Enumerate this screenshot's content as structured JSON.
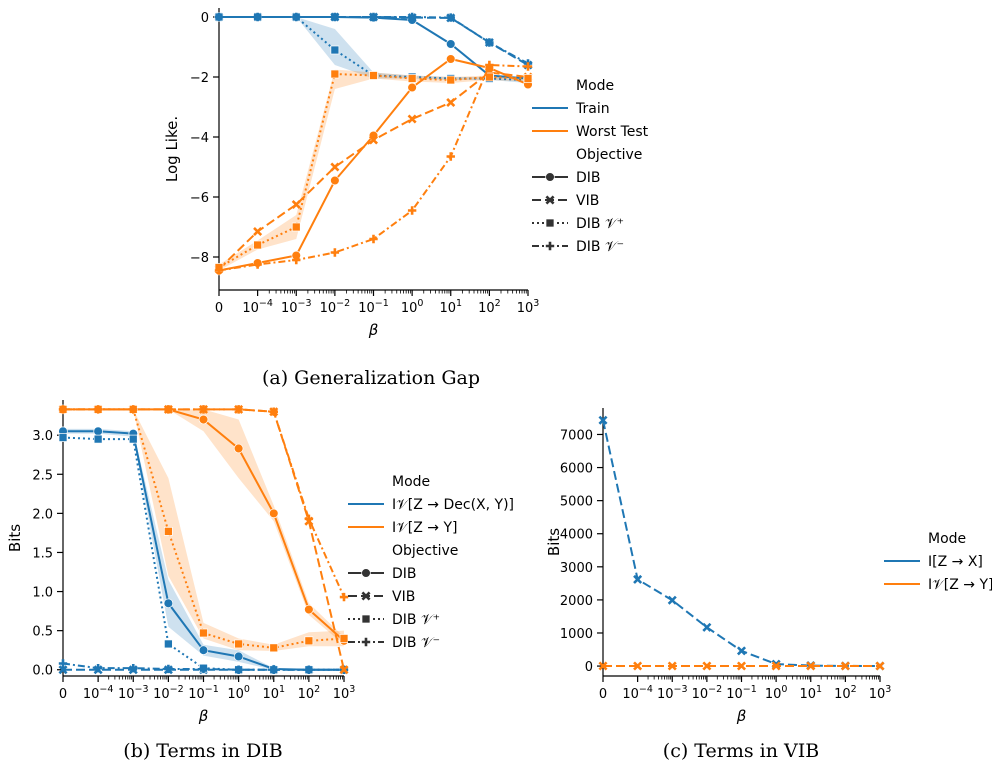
{
  "colors": {
    "train": "#1f77b4",
    "test": "#ff7f0e"
  },
  "x_ticks": [
    "0",
    "10−4",
    "10−3",
    "10−2",
    "10−1",
    "100",
    "101",
    "102",
    "103"
  ],
  "chart_data": [
    {
      "id": "a",
      "type": "line",
      "caption": "(a) Generalization Gap",
      "xlabel": "β",
      "ylabel": "Log Like.",
      "ylim": [
        -9.1,
        0.3
      ],
      "yticks": [
        0,
        -2,
        -4,
        -6,
        -8
      ],
      "legend": {
        "placement": "right",
        "mode_title": "Mode",
        "modes": [
          "Train",
          "Worst Test"
        ],
        "objective_title": "Objective",
        "objectives": [
          "DIB",
          "VIB",
          "DIB 𝒱⁺",
          "DIB 𝒱⁻"
        ]
      },
      "x": [
        0,
        1,
        2,
        3,
        4,
        5,
        6,
        7,
        8
      ],
      "series": [
        {
          "mode": "Train",
          "objective": "DIB",
          "values": [
            0,
            0,
            0,
            0,
            -0.02,
            -0.1,
            -0.9,
            -1.95,
            -2.05
          ]
        },
        {
          "mode": "Train",
          "objective": "VIB",
          "values": [
            0,
            0,
            0,
            0,
            0,
            -0.02,
            -0.03,
            -0.85,
            -1.6
          ]
        },
        {
          "mode": "Train",
          "objective": "DIB 𝒱⁺",
          "values": [
            0,
            0,
            0,
            -1.1,
            -1.95,
            -2.0,
            -2.05,
            -2.05,
            -2.1
          ],
          "band": [
            [
              0,
              0
            ],
            [
              0,
              0
            ],
            [
              0,
              0
            ],
            [
              -0.4,
              -1.6
            ],
            [
              -1.85,
              -2.05
            ],
            [
              -1.95,
              -2.05
            ],
            [
              -2.0,
              -2.1
            ],
            [
              -2.0,
              -2.1
            ],
            [
              -2.0,
              -2.2
            ]
          ]
        },
        {
          "mode": "Train",
          "objective": "DIB 𝒱⁻",
          "values": [
            0,
            0,
            0,
            0,
            0,
            0,
            -0.02,
            -0.85,
            -1.55
          ]
        },
        {
          "mode": "Worst Test",
          "objective": "DIB",
          "values": [
            -8.45,
            -8.2,
            -7.95,
            -5.45,
            -3.95,
            -2.35,
            -1.4,
            -1.7,
            -2.25
          ]
        },
        {
          "mode": "Worst Test",
          "objective": "VIB",
          "values": [
            -8.4,
            -7.15,
            -6.25,
            -5.0,
            -4.1,
            -3.4,
            -2.85,
            -1.85,
            -2.0
          ]
        },
        {
          "mode": "Worst Test",
          "objective": "DIB 𝒱⁺",
          "values": [
            -8.35,
            -7.6,
            -7.0,
            -1.9,
            -1.95,
            -2.05,
            -2.1,
            -2.0,
            -2.05
          ],
          "band": [
            [
              -8.25,
              -8.45
            ],
            [
              -7.45,
              -7.75
            ],
            [
              -6.6,
              -7.4
            ],
            [
              -1.75,
              -2.4
            ],
            [
              -1.85,
              -2.05
            ],
            [
              -1.95,
              -2.15
            ],
            [
              -2.0,
              -2.2
            ],
            [
              -1.95,
              -2.1
            ],
            [
              -2.0,
              -2.15
            ]
          ]
        },
        {
          "mode": "Worst Test",
          "objective": "DIB 𝒱⁻",
          "values": [
            -8.45,
            -8.25,
            -8.1,
            -7.85,
            -7.4,
            -6.45,
            -4.65,
            -1.6,
            -1.65
          ]
        }
      ]
    },
    {
      "id": "b",
      "type": "line",
      "caption": "(b) Terms in DIB",
      "xlabel": "β",
      "ylabel": "Bits",
      "ylim": [
        -0.08,
        3.45
      ],
      "yticks": [
        0.0,
        0.5,
        1.0,
        1.5,
        2.0,
        2.5,
        3.0
      ],
      "ytick_labels": [
        "0.0",
        "0.5",
        "1.0",
        "1.5",
        "2.0",
        "2.5",
        "3.0"
      ],
      "legend": {
        "placement": "right",
        "mode_title": "Mode",
        "modes": [
          "I𝒱[Z → Dec(X, Y)]",
          "I𝒱[Z → Y]"
        ],
        "objective_title": "Objective",
        "objectives": [
          "DIB",
          "VIB",
          "DIB 𝒱⁺",
          "DIB 𝒱⁻"
        ]
      },
      "x": [
        0,
        1,
        2,
        3,
        4,
        5,
        6,
        7,
        8
      ],
      "series": [
        {
          "mode": "Dec",
          "objective": "DIB",
          "values": [
            3.05,
            3.05,
            3.02,
            0.85,
            0.25,
            0.17,
            0.01,
            0.0,
            0.0
          ],
          "band": [
            [
              3.08,
              3.02
            ],
            [
              3.08,
              3.02
            ],
            [
              3.05,
              2.98
            ],
            [
              1.15,
              0.55
            ],
            [
              0.32,
              0.18
            ],
            [
              0.25,
              0.1
            ],
            [
              0.02,
              0.0
            ],
            [
              0.0,
              0.0
            ],
            [
              0.0,
              0.0
            ]
          ]
        },
        {
          "mode": "Dec",
          "objective": "VIB",
          "values": [
            0.0,
            0.0,
            0.0,
            0.0,
            0.0,
            0.0,
            0.0,
            0.0,
            0.0
          ]
        },
        {
          "mode": "Dec",
          "objective": "DIB 𝒱⁺",
          "values": [
            2.97,
            2.95,
            2.95,
            0.33,
            0.02,
            0.0,
            0.0,
            0.0,
            0.0
          ]
        },
        {
          "mode": "Dec",
          "objective": "DIB 𝒱⁻",
          "values": [
            0.08,
            0.02,
            0.02,
            0.01,
            0.01,
            0.0,
            0.0,
            0.0,
            0.0
          ]
        },
        {
          "mode": "Y",
          "objective": "DIB",
          "values": [
            3.33,
            3.33,
            3.33,
            3.33,
            3.2,
            2.83,
            2.0,
            0.77,
            0.37
          ],
          "band": [
            [
              3.33,
              3.33
            ],
            [
              3.33,
              3.33
            ],
            [
              3.33,
              3.33
            ],
            [
              3.33,
              3.33
            ],
            [
              3.33,
              3.05
            ],
            [
              3.2,
              2.45
            ],
            [
              2.1,
              1.9
            ],
            [
              0.85,
              0.7
            ],
            [
              0.42,
              0.32
            ]
          ]
        },
        {
          "mode": "Y",
          "objective": "VIB",
          "values": [
            3.33,
            3.33,
            3.33,
            3.33,
            3.33,
            3.33,
            3.3,
            1.9,
            0.0
          ]
        },
        {
          "mode": "Y",
          "objective": "DIB 𝒱⁺",
          "values": [
            3.33,
            3.33,
            3.33,
            1.77,
            0.47,
            0.33,
            0.28,
            0.37,
            0.4
          ],
          "band": [
            [
              3.33,
              3.33
            ],
            [
              3.33,
              3.33
            ],
            [
              3.33,
              3.33
            ],
            [
              2.45,
              1.2
            ],
            [
              0.6,
              0.4
            ],
            [
              0.4,
              0.25
            ],
            [
              0.32,
              0.24
            ],
            [
              0.48,
              0.3
            ],
            [
              0.5,
              0.3
            ]
          ]
        },
        {
          "mode": "Y",
          "objective": "DIB 𝒱⁻",
          "values": [
            3.33,
            3.33,
            3.33,
            3.33,
            3.33,
            3.33,
            3.3,
            1.93,
            0.93
          ]
        }
      ]
    },
    {
      "id": "c",
      "type": "line",
      "caption": "(c) Terms in VIB",
      "xlabel": "β",
      "ylabel": "Bits",
      "ylim": [
        -300,
        7800
      ],
      "yticks": [
        0,
        1000,
        2000,
        3000,
        4000,
        5000,
        6000,
        7000
      ],
      "legend": {
        "placement": "right",
        "mode_title": "Mode",
        "modes": [
          "I[Z → X]",
          "I𝒱[Z → Y]"
        ]
      },
      "x": [
        0,
        1,
        2,
        3,
        4,
        5,
        6,
        7,
        8
      ],
      "series": [
        {
          "mode": "ZX",
          "objective": "VIB",
          "values": [
            7430,
            2620,
            1990,
            1170,
            460,
            60,
            15,
            5,
            2
          ]
        },
        {
          "mode": "ZY",
          "objective": "VIB",
          "values": [
            3,
            3,
            3,
            3,
            3,
            3,
            3,
            3,
            3
          ]
        }
      ]
    }
  ]
}
